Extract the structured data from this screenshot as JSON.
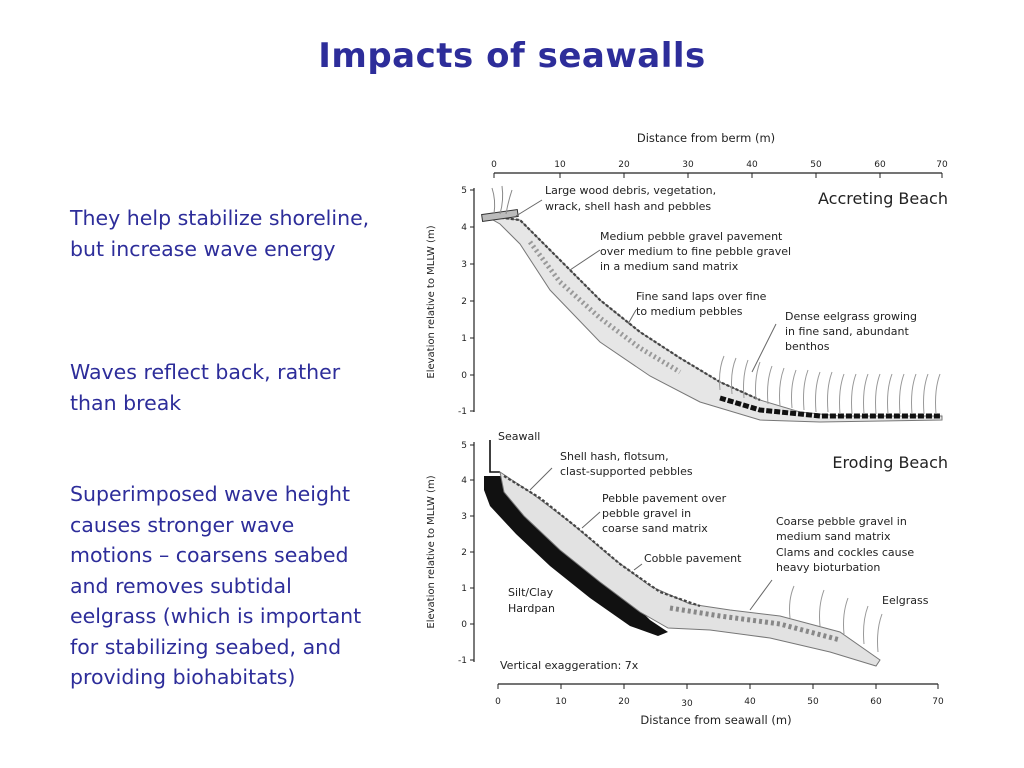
{
  "slide": {
    "title": "Impacts of seawalls",
    "bullets": [
      "They help stabilize shoreline, but increase wave energy",
      "Waves reflect back, rather than break",
      "Superimposed wave height causes stronger wave motions – coarsens seabed and removes subtidal eelgrass (which is important for stabilizing seabed, and providing biohabitats)"
    ]
  },
  "figure": {
    "top_panel": {
      "name": "Accreting Beach",
      "x_axis_label": "Distance from berm (m)",
      "x_ticks": [
        "0",
        "10",
        "20",
        "30",
        "40",
        "50",
        "60",
        "70"
      ],
      "y_axis_label": "Elevation relative to MLLW (m)",
      "y_ticks": [
        "5",
        "4",
        "3",
        "2",
        "1",
        "0",
        "-1"
      ],
      "annotations": [
        "Large wood debris, vegetation,",
        "wrack, shell hash and pebbles",
        "Medium pebble gravel pavement",
        "over medium to fine pebble gravel",
        "in a medium sand matrix",
        "Fine sand laps over fine",
        "to medium pebbles",
        "Dense eelgrass growing",
        "in fine sand, abundant",
        "benthos"
      ]
    },
    "bottom_panel": {
      "name": "Eroding Beach",
      "x_axis_label": "Distance from seawall (m)",
      "x_ticks": [
        "0",
        "10",
        "20",
        "30",
        "40",
        "50",
        "60",
        "70"
      ],
      "y_axis_label": "Elevation relative to MLLW (m)",
      "y_ticks": [
        "5",
        "4",
        "3",
        "2",
        "1",
        "0",
        "-1"
      ],
      "annotations": [
        "Seawall",
        "Shell hash, flotsum,",
        "clast-supported pebbles",
        "Pebble pavement over",
        "pebble gravel in",
        "coarse sand matrix",
        "Cobble pavement",
        "Coarse pebble gravel in",
        "medium sand matrix",
        "Clams and cockles cause",
        "heavy bioturbation",
        "Eelgrass",
        "Silt/Clay",
        "Hardpan",
        "Vertical exaggeration: 7x"
      ]
    }
  }
}
